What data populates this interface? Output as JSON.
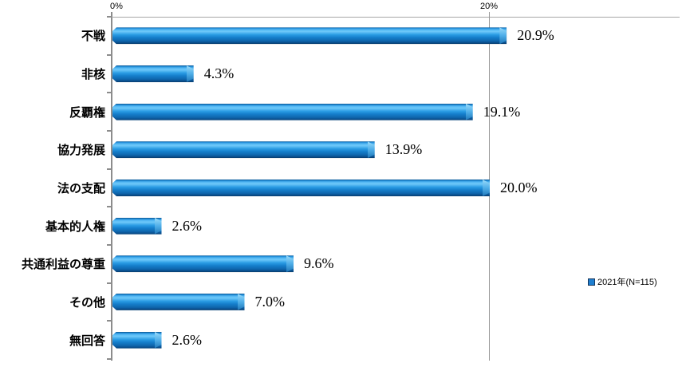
{
  "chart_data": {
    "type": "bar",
    "orientation": "horizontal",
    "title": "",
    "categories": [
      "不戦",
      "非核",
      "反覇権",
      "協力発展",
      "法の支配",
      "基本的人権",
      "共通利益の尊重",
      "その他",
      "無回答"
    ],
    "values": [
      20.9,
      4.3,
      19.1,
      13.9,
      20.0,
      2.6,
      9.6,
      7.0,
      2.6
    ],
    "value_labels": [
      "20.9%",
      "4.3%",
      "19.1%",
      "13.9%",
      "20.0%",
      "2.6%",
      "9.6%",
      "7.0%",
      "2.6%"
    ],
    "x_axis": {
      "ticks": [
        "0%",
        "20%"
      ],
      "tick_values": [
        0,
        20
      ],
      "range": [
        0,
        30
      ]
    },
    "legend": {
      "label": "2021年(N=115)",
      "position": "right",
      "swatch_color": "#1F7FD0"
    },
    "colors": {
      "bar_main": "#1583D6",
      "bar_light": "#63C3F8",
      "bar_dark": "#0A4E8C",
      "axis": "#8C8C8C",
      "gridline": "#9A9A9A"
    },
    "grid": "vertical-line-at-20-only",
    "value_label_position": "right-of-bar"
  }
}
